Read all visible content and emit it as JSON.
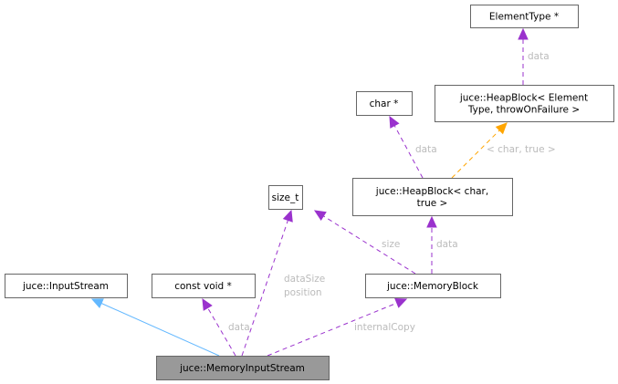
{
  "nodes": {
    "element_type": {
      "lines": [
        "ElementType *"
      ]
    },
    "heapblock_template": {
      "lines": [
        "juce::HeapBlock< Element",
        "Type, throwOnFailure >"
      ]
    },
    "char_ptr": {
      "lines": [
        "char *"
      ]
    },
    "heapblock_char": {
      "lines": [
        "juce::HeapBlock< char,",
        "true >"
      ]
    },
    "size_t": {
      "lines": [
        "size_t"
      ]
    },
    "input_stream": {
      "lines": [
        "juce::InputStream"
      ]
    },
    "const_void_ptr": {
      "lines": [
        "const void *"
      ]
    },
    "memory_block": {
      "lines": [
        "juce::MemoryBlock"
      ]
    },
    "memory_input_stream": {
      "lines": [
        "juce::MemoryInputStream"
      ],
      "highlighted": true
    }
  },
  "edges": [
    {
      "from": "memory_input_stream",
      "to": "input_stream",
      "kind": "inheritance",
      "labels": []
    },
    {
      "from": "memory_input_stream",
      "to": "const_void_ptr",
      "kind": "usage",
      "labels": [
        "data"
      ]
    },
    {
      "from": "memory_input_stream",
      "to": "size_t",
      "kind": "usage",
      "labels": [
        "dataSize",
        "position"
      ]
    },
    {
      "from": "memory_input_stream",
      "to": "memory_block",
      "kind": "usage",
      "labels": [
        "internalCopy"
      ]
    },
    {
      "from": "memory_block",
      "to": "size_t",
      "kind": "usage",
      "labels": [
        "size"
      ]
    },
    {
      "from": "memory_block",
      "to": "heapblock_char",
      "kind": "usage",
      "labels": [
        "data"
      ]
    },
    {
      "from": "heapblock_char",
      "to": "char_ptr",
      "kind": "usage",
      "labels": [
        "data"
      ]
    },
    {
      "from": "heapblock_char",
      "to": "heapblock_template",
      "kind": "template",
      "labels": [
        "< char, true >"
      ]
    },
    {
      "from": "heapblock_template",
      "to": "element_type",
      "kind": "usage",
      "labels": [
        "data"
      ]
    }
  ],
  "colors": {
    "inheritance": "#63b8ff",
    "usage": "#9a32cd",
    "template": "#ffa500",
    "edge_label": "#bbbbbb",
    "highlight_fill": "#999999",
    "node_border": "#666666"
  }
}
